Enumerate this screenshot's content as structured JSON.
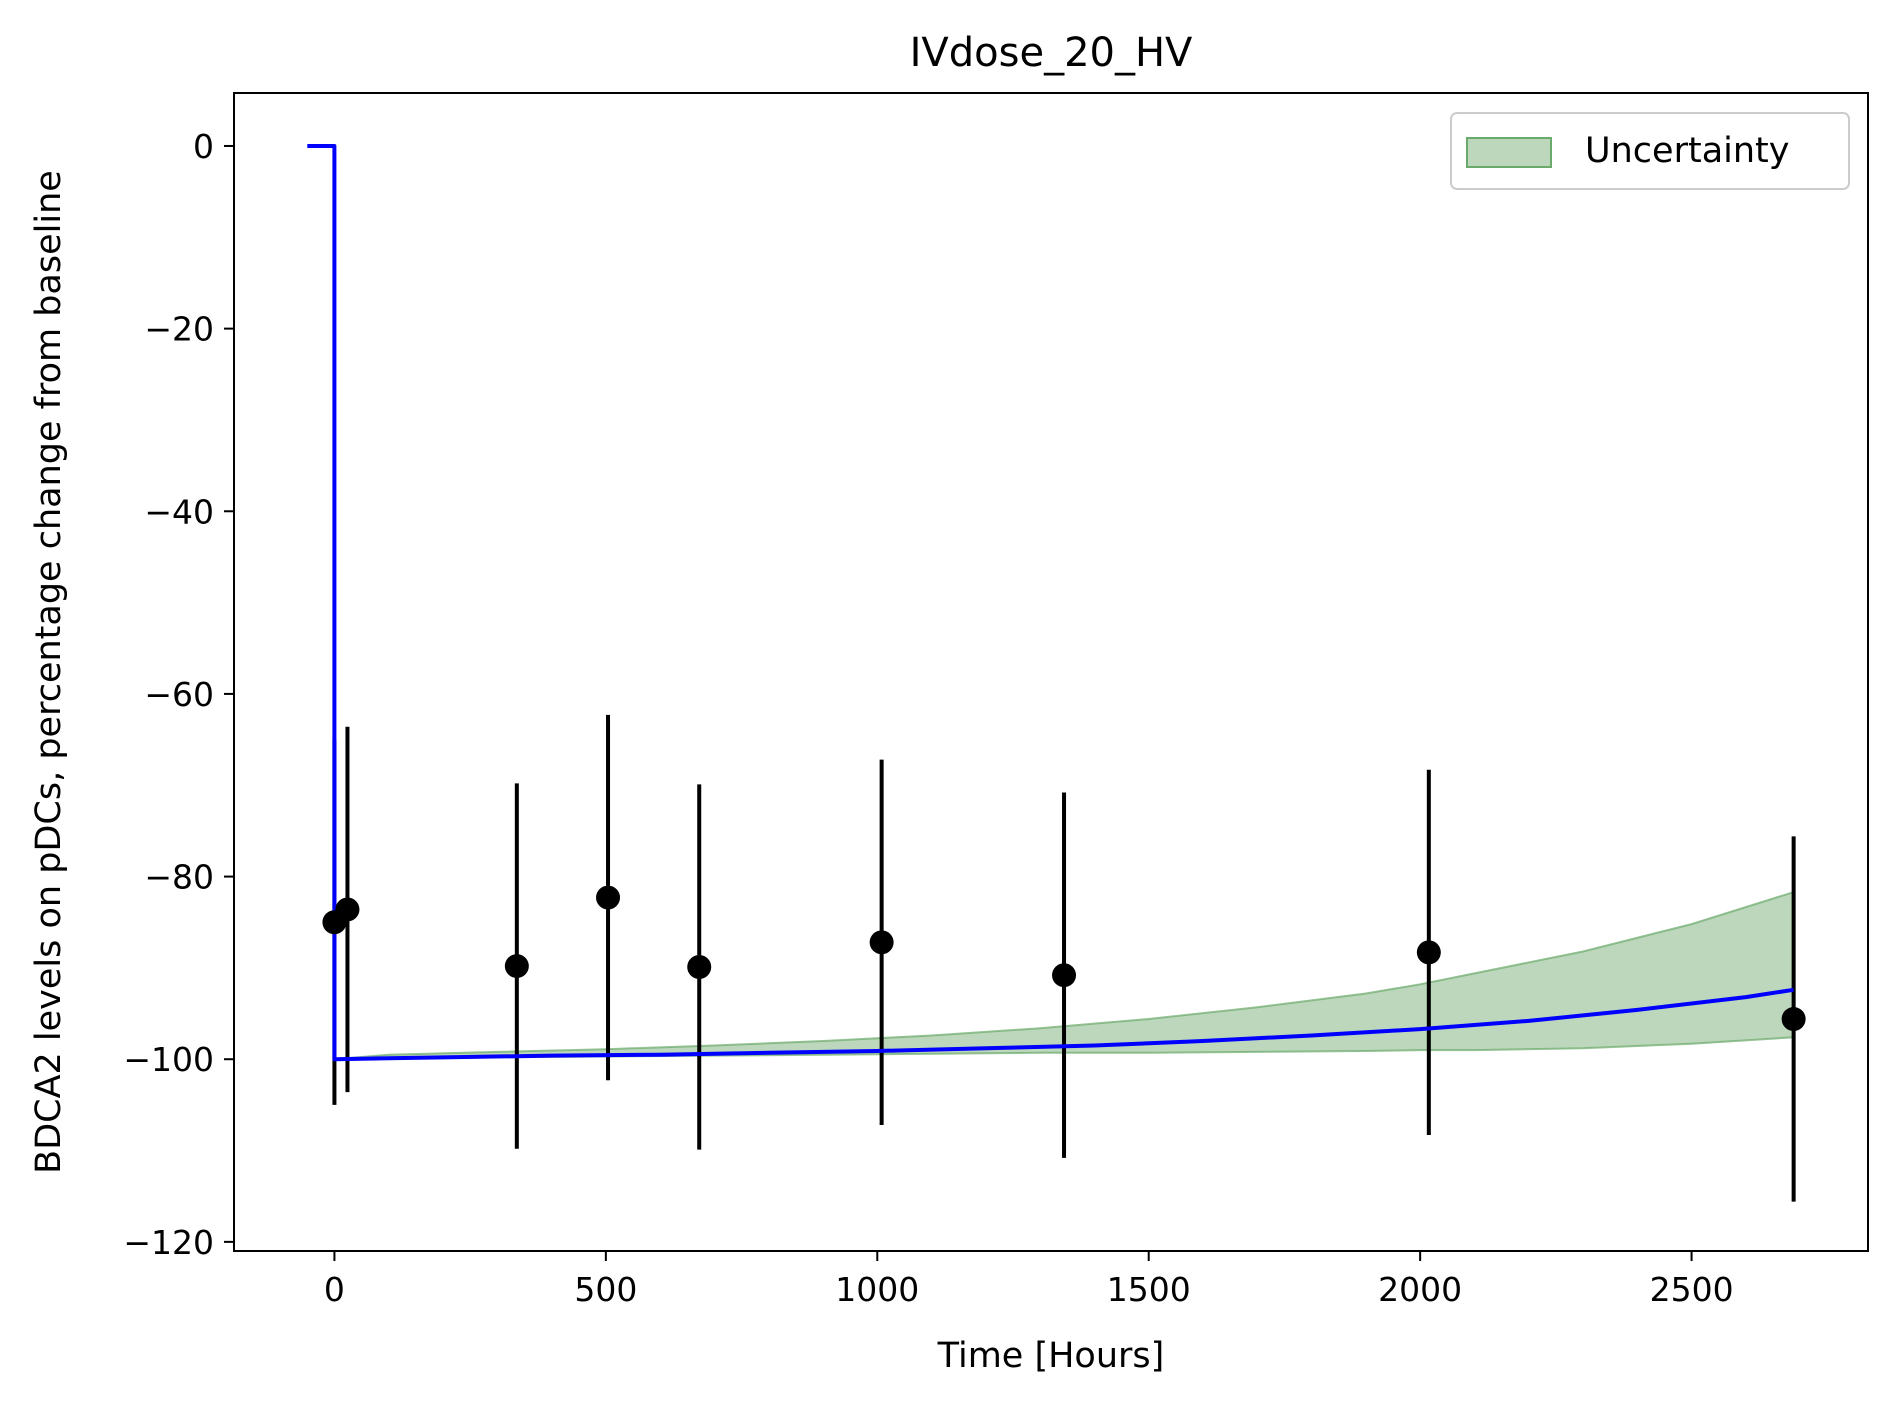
{
  "chart_data": {
    "type": "line",
    "title": "IVdose_20_HV",
    "xlabel": "Time [Hours]",
    "ylabel": "BDCA2 levels on pDCs, percentage change from baseline",
    "xlim": [
      -185,
      2825
    ],
    "ylim": [
      -121,
      5.8
    ],
    "x_ticks": [
      0,
      500,
      1000,
      1500,
      2000,
      2500
    ],
    "y_ticks": [
      0,
      -20,
      -40,
      -60,
      -80,
      -100,
      -120
    ],
    "x_tick_labels": [
      "0",
      "500",
      "1000",
      "1500",
      "2000",
      "2500"
    ],
    "y_tick_labels": [
      "0",
      "−20",
      "−40",
      "−60",
      "−80",
      "−100",
      "−120"
    ],
    "grid": false,
    "legend": {
      "position": "top-right",
      "entries": [
        "Uncertainty"
      ]
    },
    "colors": {
      "model_line": "#0000ff",
      "band_fill": "#8fbc8f",
      "band_edge": "#6aaa6a",
      "observed": "#000000"
    },
    "model_line": [
      {
        "x": -50,
        "y": 0
      },
      {
        "x": 0,
        "y": 0
      },
      {
        "x": 0,
        "y": -100
      },
      {
        "x": 200,
        "y": -99.8
      },
      {
        "x": 400,
        "y": -99.6
      },
      {
        "x": 600,
        "y": -99.5
      },
      {
        "x": 800,
        "y": -99.3
      },
      {
        "x": 1000,
        "y": -99.1
      },
      {
        "x": 1200,
        "y": -98.8
      },
      {
        "x": 1400,
        "y": -98.5
      },
      {
        "x": 1600,
        "y": -98
      },
      {
        "x": 1800,
        "y": -97.4
      },
      {
        "x": 2000,
        "y": -96.7
      },
      {
        "x": 2200,
        "y": -95.8
      },
      {
        "x": 2400,
        "y": -94.6
      },
      {
        "x": 2600,
        "y": -93.2
      },
      {
        "x": 2688,
        "y": -92.4
      }
    ],
    "uncertainty_band": {
      "x": [
        0,
        100,
        300,
        500,
        700,
        900,
        1100,
        1300,
        1500,
        1700,
        1900,
        2000,
        2100,
        2300,
        2500,
        2688
      ],
      "upper": [
        -100,
        -99.5,
        -99.2,
        -98.9,
        -98.5,
        -98.0,
        -97.4,
        -96.6,
        -95.6,
        -94.3,
        -92.8,
        -91.8,
        -90.6,
        -88.2,
        -85.2,
        -81.7
      ],
      "lower": [
        -100,
        -99.9,
        -99.8,
        -99.7,
        -99.6,
        -99.5,
        -99.4,
        -99.3,
        -99.3,
        -99.2,
        -99.1,
        -99.0,
        -99.0,
        -98.8,
        -98.3,
        -97.6
      ]
    },
    "observed": [
      {
        "x": 0,
        "y": -85,
        "err_low": -105,
        "err_high": -65
      },
      {
        "x": 24,
        "y": -83.6,
        "err_low": -103.6,
        "err_high": -63.6
      },
      {
        "x": 336,
        "y": -89.8,
        "err_low": -109.8,
        "err_high": -69.8
      },
      {
        "x": 504,
        "y": -82.3,
        "err_low": -102.3,
        "err_high": -62.3
      },
      {
        "x": 672,
        "y": -89.9,
        "err_low": -109.9,
        "err_high": -69.9
      },
      {
        "x": 1008,
        "y": -87.2,
        "err_low": -107.2,
        "err_high": -67.2
      },
      {
        "x": 1344,
        "y": -90.8,
        "err_low": -110.8,
        "err_high": -70.8
      },
      {
        "x": 2016,
        "y": -88.3,
        "err_low": -108.3,
        "err_high": -68.3
      },
      {
        "x": 2688,
        "y": -95.6,
        "err_low": -115.6,
        "err_high": -75.6
      }
    ]
  }
}
